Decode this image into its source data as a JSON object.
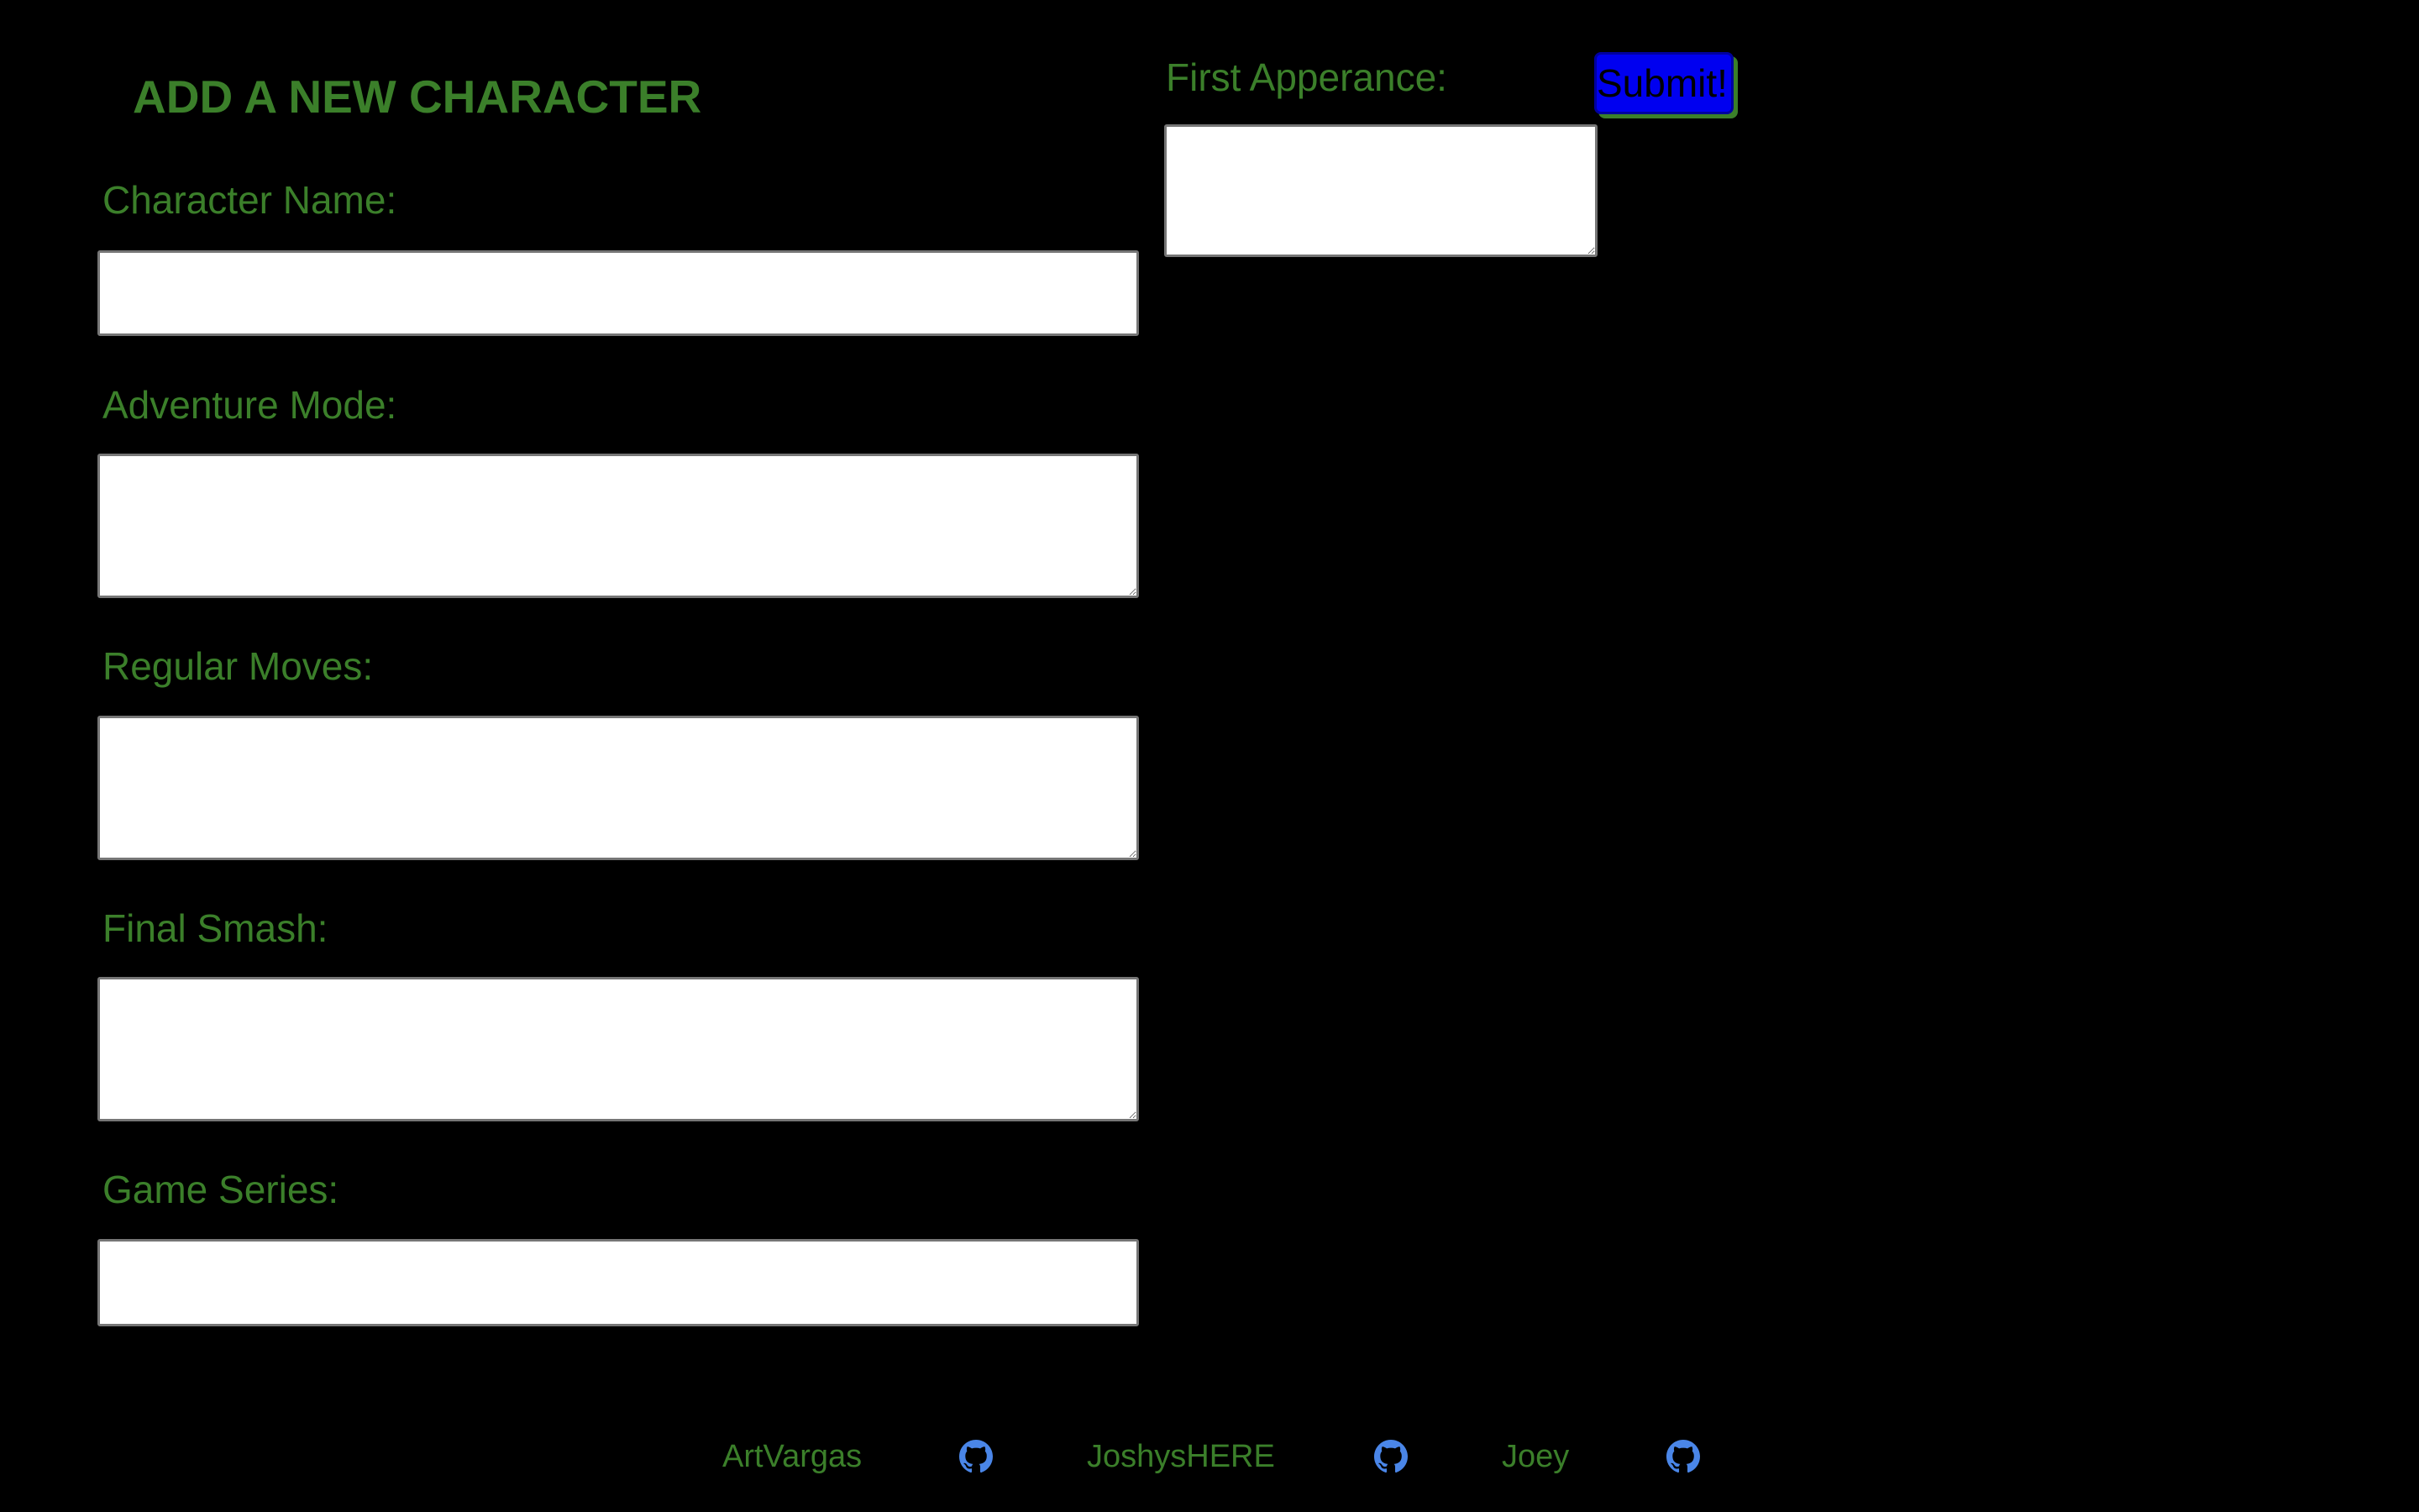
{
  "page_title": "ADD A NEW CHARACTER",
  "form": {
    "character_name": {
      "label": "Character Name:",
      "value": ""
    },
    "adventure_mode": {
      "label": "Adventure Mode:",
      "value": ""
    },
    "regular_moves": {
      "label": "Regular Moves:",
      "value": ""
    },
    "final_smash": {
      "label": "Final Smash:",
      "value": ""
    },
    "game_series": {
      "label": "Game Series:",
      "value": ""
    },
    "first_appearance": {
      "label": "First Apperance:",
      "value": ""
    },
    "submit_label": "Submit!"
  },
  "footer": {
    "authors": [
      {
        "name": "ArtVargas",
        "icon": "github-icon"
      },
      {
        "name": "JoshysHERE",
        "icon": "github-icon"
      },
      {
        "name": "Joey",
        "icon": "github-icon"
      }
    ]
  },
  "colors": {
    "background": "#000000",
    "text_green": "#3b7f2a",
    "submit_blue": "#0000f0",
    "icon_blue": "#4a86e8",
    "input_bg": "#ffffff"
  }
}
